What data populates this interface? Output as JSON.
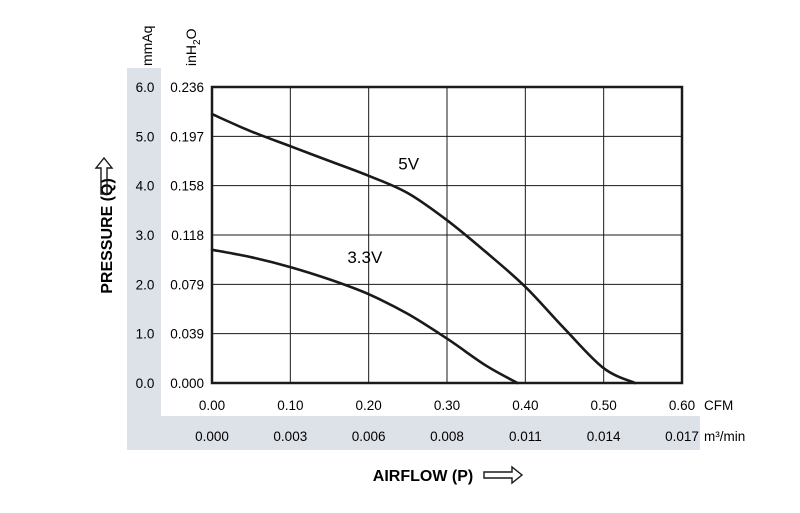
{
  "chart_data": {
    "type": "line",
    "title": "",
    "xlabel": "AIRFLOW (P)",
    "ylabel": "PRESSURE (Q)",
    "x_unit_primary": "CFM",
    "x_unit_secondary": "m³/min",
    "y_unit_primary": "mmAq",
    "y_unit_secondary": "inH2O",
    "x_ticks": [
      "0.00",
      "0.10",
      "0.20",
      "0.30",
      "0.40",
      "0.50",
      "0.60"
    ],
    "x_ticks_secondary": [
      "0.000",
      "0.003",
      "0.006",
      "0.008",
      "0.011",
      "0.014",
      "0.017"
    ],
    "y_ticks": [
      "0.0",
      "1.0",
      "2.0",
      "3.0",
      "4.0",
      "5.0",
      "6.0"
    ],
    "y_ticks_secondary": [
      "0.000",
      "0.039",
      "0.079",
      "0.118",
      "0.158",
      "0.197",
      "0.236"
    ],
    "xlim": [
      0,
      0.6
    ],
    "ylim": [
      0,
      6
    ],
    "grid": true,
    "series": [
      {
        "name": "5V",
        "x": [
          0.0,
          0.05,
          0.1,
          0.15,
          0.2,
          0.25,
          0.3,
          0.35,
          0.4,
          0.45,
          0.5,
          0.54
        ],
        "y": [
          5.45,
          5.1,
          4.8,
          4.5,
          4.2,
          3.85,
          3.3,
          2.65,
          1.95,
          1.1,
          0.3,
          0.0
        ]
      },
      {
        "name": "3.3V",
        "x": [
          0.0,
          0.05,
          0.1,
          0.15,
          0.2,
          0.25,
          0.3,
          0.35,
          0.39
        ],
        "y": [
          2.7,
          2.55,
          2.35,
          2.1,
          1.8,
          1.4,
          0.9,
          0.35,
          0.0
        ]
      }
    ],
    "series_label_positions": {
      "5V": {
        "x": 0.225,
        "y": 4.25
      },
      "3.3V": {
        "x": 0.16,
        "y": 2.35
      }
    },
    "colors": {
      "line": "#1a1a1a",
      "grid": "#1a1a1a",
      "axis_band": "#dde1e8",
      "axis_band_text": "#1a1a1a"
    }
  }
}
